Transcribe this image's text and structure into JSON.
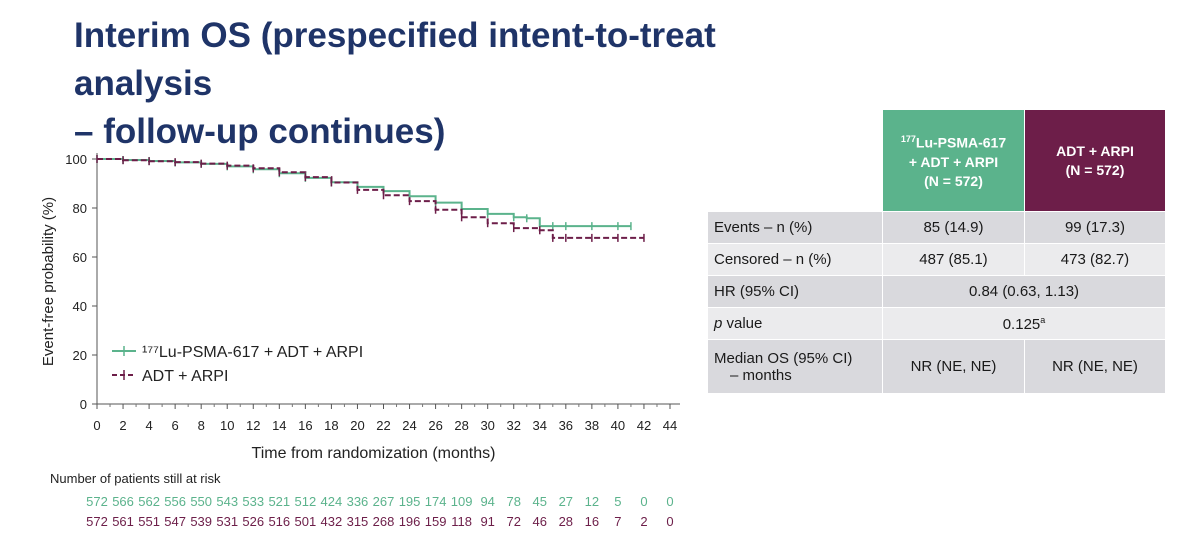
{
  "title": {
    "line1": "Interim OS (prespecified intent-to-treat analysis",
    "line2": "– follow-up continues)"
  },
  "chart_data": {
    "type": "line",
    "xlabel": "Time from randomization (months)",
    "ylabel": "Event-free probability (%)",
    "xlim": [
      0,
      44
    ],
    "ylim": [
      0,
      100
    ],
    "xticks": [
      "0",
      "2",
      "4",
      "6",
      "8",
      "10",
      "12",
      "14",
      "16",
      "18",
      "20",
      "22",
      "24",
      "26",
      "28",
      "30",
      "32",
      "34",
      "36",
      "38",
      "40",
      "42",
      "44"
    ],
    "yticks": [
      "0",
      "20",
      "40",
      "60",
      "80",
      "100"
    ],
    "grid": false,
    "legend_position": "lower-left",
    "series": [
      {
        "name": "¹⁷⁷Lu-PSMA-617 + ADT + ARPI",
        "color": "#5bb38c",
        "x": [
          0,
          2,
          4,
          6,
          8,
          10,
          12,
          14,
          16,
          18,
          20,
          22,
          24,
          26,
          28,
          30,
          32,
          33,
          34,
          35,
          36,
          38,
          40,
          41
        ],
        "y": [
          100,
          99.6,
          99.2,
          98.6,
          98,
          97,
          95.8,
          94.2,
          92.3,
          90.5,
          88.6,
          86.9,
          84.8,
          82.2,
          79.6,
          77.6,
          76.2,
          75.8,
          72.6,
          72.6,
          72.6,
          72.6,
          72.6,
          72.6
        ]
      },
      {
        "name": "ADT + ARPI",
        "color": "#6d1e49",
        "x": [
          0,
          2,
          4,
          6,
          8,
          10,
          12,
          14,
          16,
          18,
          20,
          22,
          24,
          26,
          28,
          30,
          32,
          34,
          35,
          36,
          38,
          40,
          42
        ],
        "y": [
          100,
          99.5,
          99.1,
          98.7,
          98.1,
          97.3,
          96.2,
          94.6,
          92.6,
          90.4,
          87.4,
          85.2,
          82.8,
          79.3,
          76.2,
          73.8,
          71.8,
          70.9,
          67.8,
          67.8,
          67.8,
          67.8,
          67.8
        ]
      }
    ],
    "at_risk_label": "Number of patients still at risk",
    "at_risk": [
      [
        "572",
        "566",
        "562",
        "556",
        "550",
        "543",
        "533",
        "521",
        "512",
        "424",
        "336",
        "267",
        "195",
        "174",
        "109",
        "94",
        "78",
        "45",
        "27",
        "12",
        "5",
        "0",
        "0"
      ],
      [
        "572",
        "561",
        "551",
        "547",
        "539",
        "531",
        "526",
        "516",
        "501",
        "432",
        "315",
        "268",
        "196",
        "159",
        "118",
        "91",
        "72",
        "46",
        "28",
        "16",
        "7",
        "2",
        "0"
      ]
    ]
  },
  "table": {
    "header": {
      "lu_line1_sup": "177",
      "lu_line1": "Lu-PSMA-617",
      "lu_line2": "+ ADT + ARPI",
      "lu_line3": "(N = 572)",
      "adt_line1": "ADT + ARPI",
      "adt_line2": "(N = 572)"
    },
    "rows": {
      "events": {
        "label": "Events – n (%)",
        "lu": "85 (14.9)",
        "adt": "99 (17.3)"
      },
      "censored": {
        "label": "Censored – n (%)",
        "lu": "487 (85.1)",
        "adt": "473 (82.7)"
      },
      "hr": {
        "label": "HR (95% CI)",
        "value": "0.84 (0.63, 1.13)"
      },
      "p": {
        "label_italic": "p",
        "label_rest": " value",
        "value": "0.125",
        "sup": "a"
      },
      "median": {
        "label1": "Median OS (95% CI)",
        "label2": "– months",
        "lu": "NR (NE, NE)",
        "adt": "NR (NE, NE)"
      }
    }
  }
}
